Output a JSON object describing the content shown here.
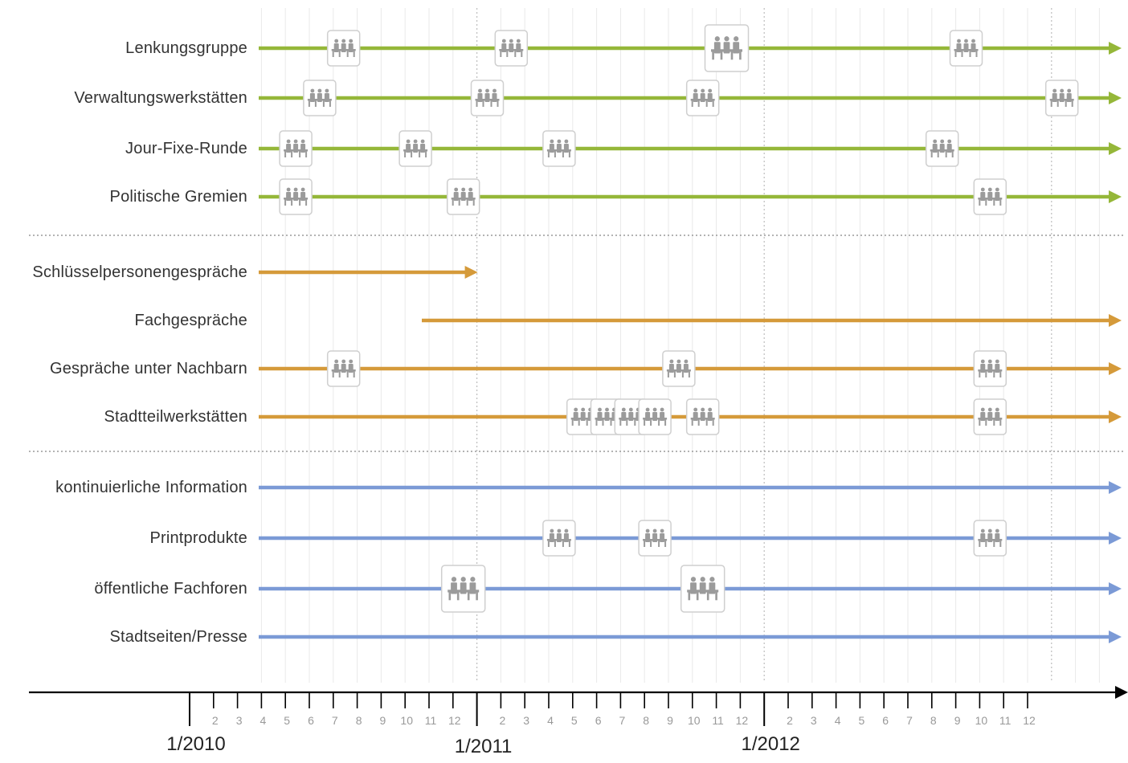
{
  "colors": {
    "green": "#95b739",
    "orange": "#d59a3a",
    "blue": "#7b9ad6",
    "axis": "#000000",
    "icon_border": "#cfcfcf",
    "icon_figure": "#9b9b9b",
    "gridline": "#e9e9e9",
    "separator": "#9a9a9a"
  },
  "icon_name": "meeting-group-icon",
  "timeline": {
    "start": "2010-01",
    "end": "2013-03",
    "year_labels": [
      "1/2010",
      "1/2011",
      "1/2012"
    ],
    "year_label_months": [
      "2010-01",
      "2011-01",
      "2012-01"
    ],
    "month_tick_labels": [
      "2",
      "3",
      "4",
      "5",
      "6",
      "7",
      "8",
      "9",
      "10",
      "11",
      "12",
      "2",
      "3",
      "4",
      "5",
      "6",
      "7",
      "8",
      "9",
      "10",
      "11",
      "12",
      "2",
      "3",
      "4",
      "5",
      "6",
      "7",
      "8",
      "9",
      "10",
      "11",
      "12"
    ]
  },
  "groups": [
    {
      "color": "green",
      "rows": [
        {
          "label": "Lenkungsgruppe",
          "start": "2010-04",
          "arrow": true,
          "events": [
            {
              "month": "2010-07"
            },
            {
              "month": "2011-02"
            },
            {
              "month": "2011-11",
              "large": true
            },
            {
              "month": "2012-09"
            }
          ]
        },
        {
          "label": "Verwaltungswerkstätten",
          "start": "2010-04",
          "arrow": true,
          "events": [
            {
              "month": "2010-06"
            },
            {
              "month": "2011-01"
            },
            {
              "month": "2011-10"
            },
            {
              "month": "2013-01"
            }
          ]
        },
        {
          "label": "Jour-Fixe-Runde",
          "start": "2010-04",
          "arrow": true,
          "events": [
            {
              "month": "2010-05"
            },
            {
              "month": "2010-10"
            },
            {
              "month": "2011-04"
            },
            {
              "month": "2012-08"
            }
          ]
        },
        {
          "label": "Politische Gremien",
          "start": "2010-04",
          "arrow": true,
          "events": [
            {
              "month": "2010-05"
            },
            {
              "month": "2010-12"
            },
            {
              "month": "2012-10"
            }
          ]
        }
      ]
    },
    {
      "color": "orange",
      "rows": [
        {
          "label": "Schlüsselpersonengespräche",
          "start": "2010-04",
          "end": "2011-01",
          "arrow": true,
          "events": []
        },
        {
          "label": "Fachgespräche",
          "start": "2010-11",
          "arrow": true,
          "events": []
        },
        {
          "label": "Gespräche unter Nachbarn",
          "start": "2010-04",
          "arrow": true,
          "events": [
            {
              "month": "2010-07"
            },
            {
              "month": "2011-09"
            },
            {
              "month": "2012-10"
            }
          ]
        },
        {
          "label": "Stadtteilwerkstätten",
          "start": "2010-04",
          "arrow": true,
          "events": [
            {
              "month": "2011-05"
            },
            {
              "month": "2011-06"
            },
            {
              "month": "2011-07"
            },
            {
              "month": "2011-08"
            },
            {
              "month": "2011-10"
            },
            {
              "month": "2012-10"
            }
          ]
        }
      ]
    },
    {
      "color": "blue",
      "rows": [
        {
          "label": "kontinuierliche Information",
          "start": "2010-04",
          "arrow": true,
          "events": []
        },
        {
          "label": "Printprodukte",
          "start": "2010-04",
          "arrow": true,
          "events": [
            {
              "month": "2011-04"
            },
            {
              "month": "2011-08"
            },
            {
              "month": "2012-10"
            }
          ]
        },
        {
          "label": "öffentliche Fachforen",
          "start": "2010-04",
          "arrow": true,
          "events": [
            {
              "month": "2010-12",
              "large": true
            },
            {
              "month": "2011-10",
              "large": true
            }
          ]
        },
        {
          "label": "Stadtseiten/Presse",
          "start": "2010-04",
          "arrow": true,
          "events": []
        }
      ]
    }
  ]
}
